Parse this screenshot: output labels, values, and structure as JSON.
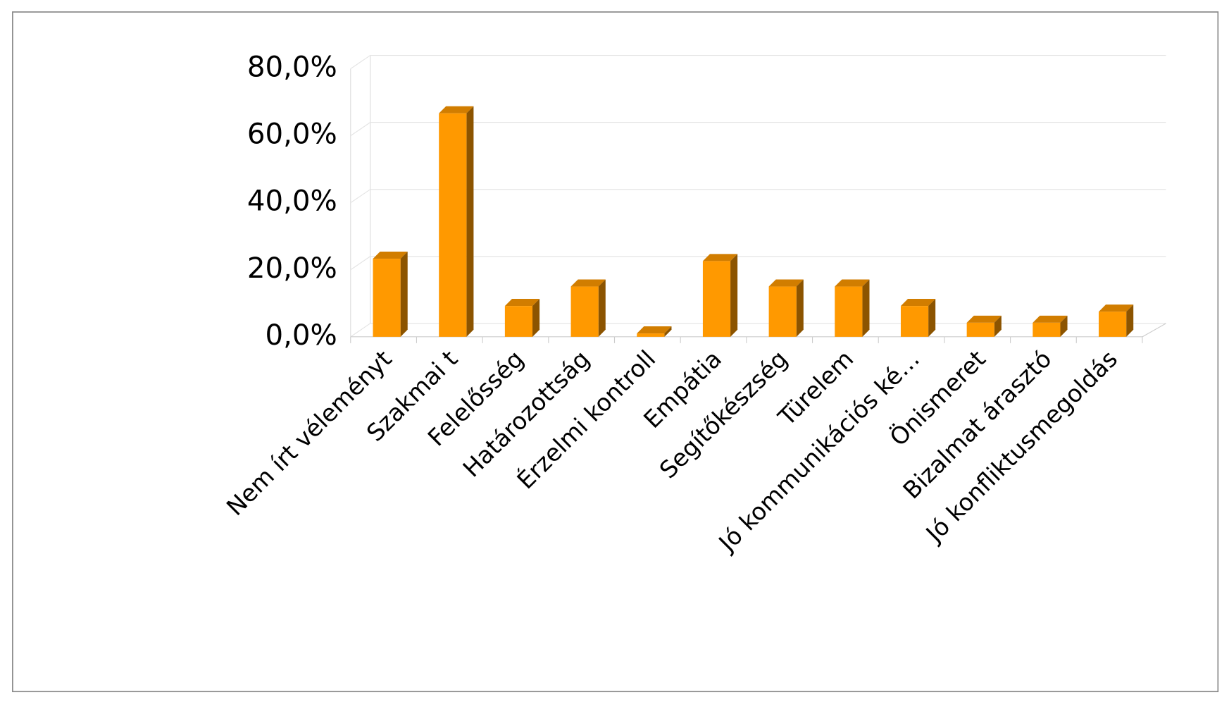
{
  "chart_data": {
    "type": "bar3d",
    "categories": [
      "Nem írt véleményt",
      "Szakmai t",
      "Felelősség",
      "Határozottság",
      "Érzelmi kontroll",
      "Empátia",
      "Segítőkészség",
      "Türelem",
      "Jó kommunikációs ké…",
      "Önismeret",
      "Bizalmat árasztó",
      "Jó konfliktusmegoldás"
    ],
    "values": [
      23.3,
      66.7,
      9.2,
      15,
      1,
      22.6,
      15,
      15,
      9.2,
      4.2,
      4.2,
      7.5
    ],
    "color": "#ff9900",
    "ylim": [
      0,
      80
    ],
    "yticks": [
      {
        "value": 0,
        "label": "0,0%"
      },
      {
        "value": 20,
        "label": "20,0%"
      },
      {
        "value": 40,
        "label": "40,0%"
      },
      {
        "value": 60,
        "label": "60,0%"
      },
      {
        "value": 80,
        "label": "80,0%"
      }
    ],
    "grid": true
  }
}
